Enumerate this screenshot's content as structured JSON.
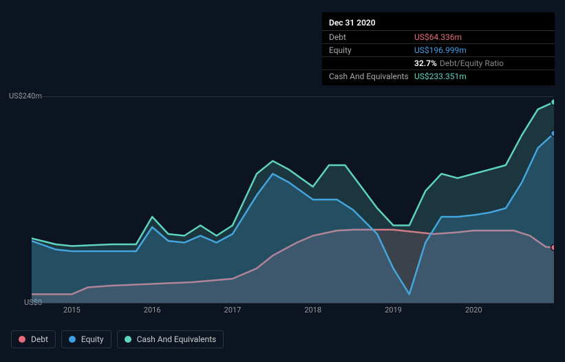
{
  "chart": {
    "type": "area",
    "background_color": "#0d1421",
    "grid_color": "#2a3544",
    "text_color": "#999999",
    "ylim": [
      0,
      240
    ],
    "y_ticks": [
      {
        "value": 0,
        "label": "US$0"
      },
      {
        "value": 240,
        "label": "US$240m"
      }
    ],
    "x_years": [
      2015,
      2016,
      2017,
      2018,
      2019,
      2020
    ],
    "x_range": [
      2014.5,
      2021.0
    ],
    "series": [
      {
        "name": "Debt",
        "color": "#e8697a",
        "fill_opacity": 0.18,
        "line_width": 2.5,
        "points": [
          [
            2014.5,
            10
          ],
          [
            2015.0,
            10
          ],
          [
            2015.2,
            18
          ],
          [
            2015.5,
            20
          ],
          [
            2016.0,
            22
          ],
          [
            2016.5,
            24
          ],
          [
            2017.0,
            28
          ],
          [
            2017.3,
            40
          ],
          [
            2017.5,
            55
          ],
          [
            2017.8,
            70
          ],
          [
            2018.0,
            78
          ],
          [
            2018.3,
            84
          ],
          [
            2018.5,
            85
          ],
          [
            2019.0,
            85
          ],
          [
            2019.3,
            82
          ],
          [
            2019.5,
            80
          ],
          [
            2019.8,
            82
          ],
          [
            2020.0,
            84
          ],
          [
            2020.3,
            84
          ],
          [
            2020.5,
            84
          ],
          [
            2020.7,
            78
          ],
          [
            2020.9,
            65
          ],
          [
            2021.0,
            64.336
          ]
        ]
      },
      {
        "name": "Equity",
        "color": "#3f9de6",
        "fill_opacity": 0.22,
        "line_width": 2.5,
        "points": [
          [
            2014.5,
            72
          ],
          [
            2014.8,
            62
          ],
          [
            2015.0,
            60
          ],
          [
            2015.5,
            60
          ],
          [
            2015.8,
            60
          ],
          [
            2016.0,
            88
          ],
          [
            2016.2,
            72
          ],
          [
            2016.4,
            70
          ],
          [
            2016.6,
            78
          ],
          [
            2016.8,
            70
          ],
          [
            2017.0,
            80
          ],
          [
            2017.3,
            125
          ],
          [
            2017.5,
            150
          ],
          [
            2017.7,
            140
          ],
          [
            2018.0,
            120
          ],
          [
            2018.3,
            120
          ],
          [
            2018.5,
            108
          ],
          [
            2018.8,
            80
          ],
          [
            2019.0,
            40
          ],
          [
            2019.2,
            10
          ],
          [
            2019.4,
            70
          ],
          [
            2019.6,
            100
          ],
          [
            2019.8,
            100
          ],
          [
            2020.0,
            102
          ],
          [
            2020.2,
            105
          ],
          [
            2020.4,
            110
          ],
          [
            2020.6,
            140
          ],
          [
            2020.8,
            180
          ],
          [
            2021.0,
            196.999
          ]
        ]
      },
      {
        "name": "Cash And Equivalents",
        "color": "#5ed4c0",
        "fill_opacity": 0.18,
        "line_width": 2.5,
        "points": [
          [
            2014.5,
            75
          ],
          [
            2014.8,
            68
          ],
          [
            2015.0,
            66
          ],
          [
            2015.5,
            68
          ],
          [
            2015.8,
            68
          ],
          [
            2016.0,
            100
          ],
          [
            2016.2,
            80
          ],
          [
            2016.4,
            78
          ],
          [
            2016.6,
            90
          ],
          [
            2016.8,
            78
          ],
          [
            2017.0,
            90
          ],
          [
            2017.3,
            150
          ],
          [
            2017.5,
            165
          ],
          [
            2017.7,
            155
          ],
          [
            2018.0,
            135
          ],
          [
            2018.2,
            160
          ],
          [
            2018.4,
            160
          ],
          [
            2018.6,
            135
          ],
          [
            2018.8,
            110
          ],
          [
            2019.0,
            90
          ],
          [
            2019.2,
            90
          ],
          [
            2019.4,
            130
          ],
          [
            2019.6,
            150
          ],
          [
            2019.8,
            145
          ],
          [
            2020.0,
            150
          ],
          [
            2020.2,
            155
          ],
          [
            2020.4,
            160
          ],
          [
            2020.6,
            195
          ],
          [
            2020.8,
            225
          ],
          [
            2021.0,
            233.351
          ]
        ]
      }
    ],
    "end_markers": [
      {
        "series": "Debt",
        "x": 2021.0,
        "y": 64.336,
        "color": "#e8697a"
      },
      {
        "series": "Equity",
        "x": 2021.0,
        "y": 196.999,
        "color": "#3f9de6"
      },
      {
        "series": "Cash And Equivalents",
        "x": 2021.0,
        "y": 233.351,
        "color": "#5ed4c0"
      }
    ]
  },
  "tooltip": {
    "title": "Dec 31 2020",
    "rows": [
      {
        "label": "Debt",
        "value": "US$64.336m",
        "color": "#e8697a"
      },
      {
        "label": "Equity",
        "value": "US$196.999m",
        "color": "#3f9de6"
      },
      {
        "label": "",
        "pct": "32.7%",
        "sub": "Debt/Equity Ratio"
      },
      {
        "label": "Cash And Equivalents",
        "value": "US$233.351m",
        "color": "#5ed4c0"
      }
    ]
  },
  "legend": {
    "items": [
      {
        "label": "Debt",
        "color": "#e8697a"
      },
      {
        "label": "Equity",
        "color": "#3f9de6"
      },
      {
        "label": "Cash And Equivalents",
        "color": "#5ed4c0"
      }
    ]
  }
}
